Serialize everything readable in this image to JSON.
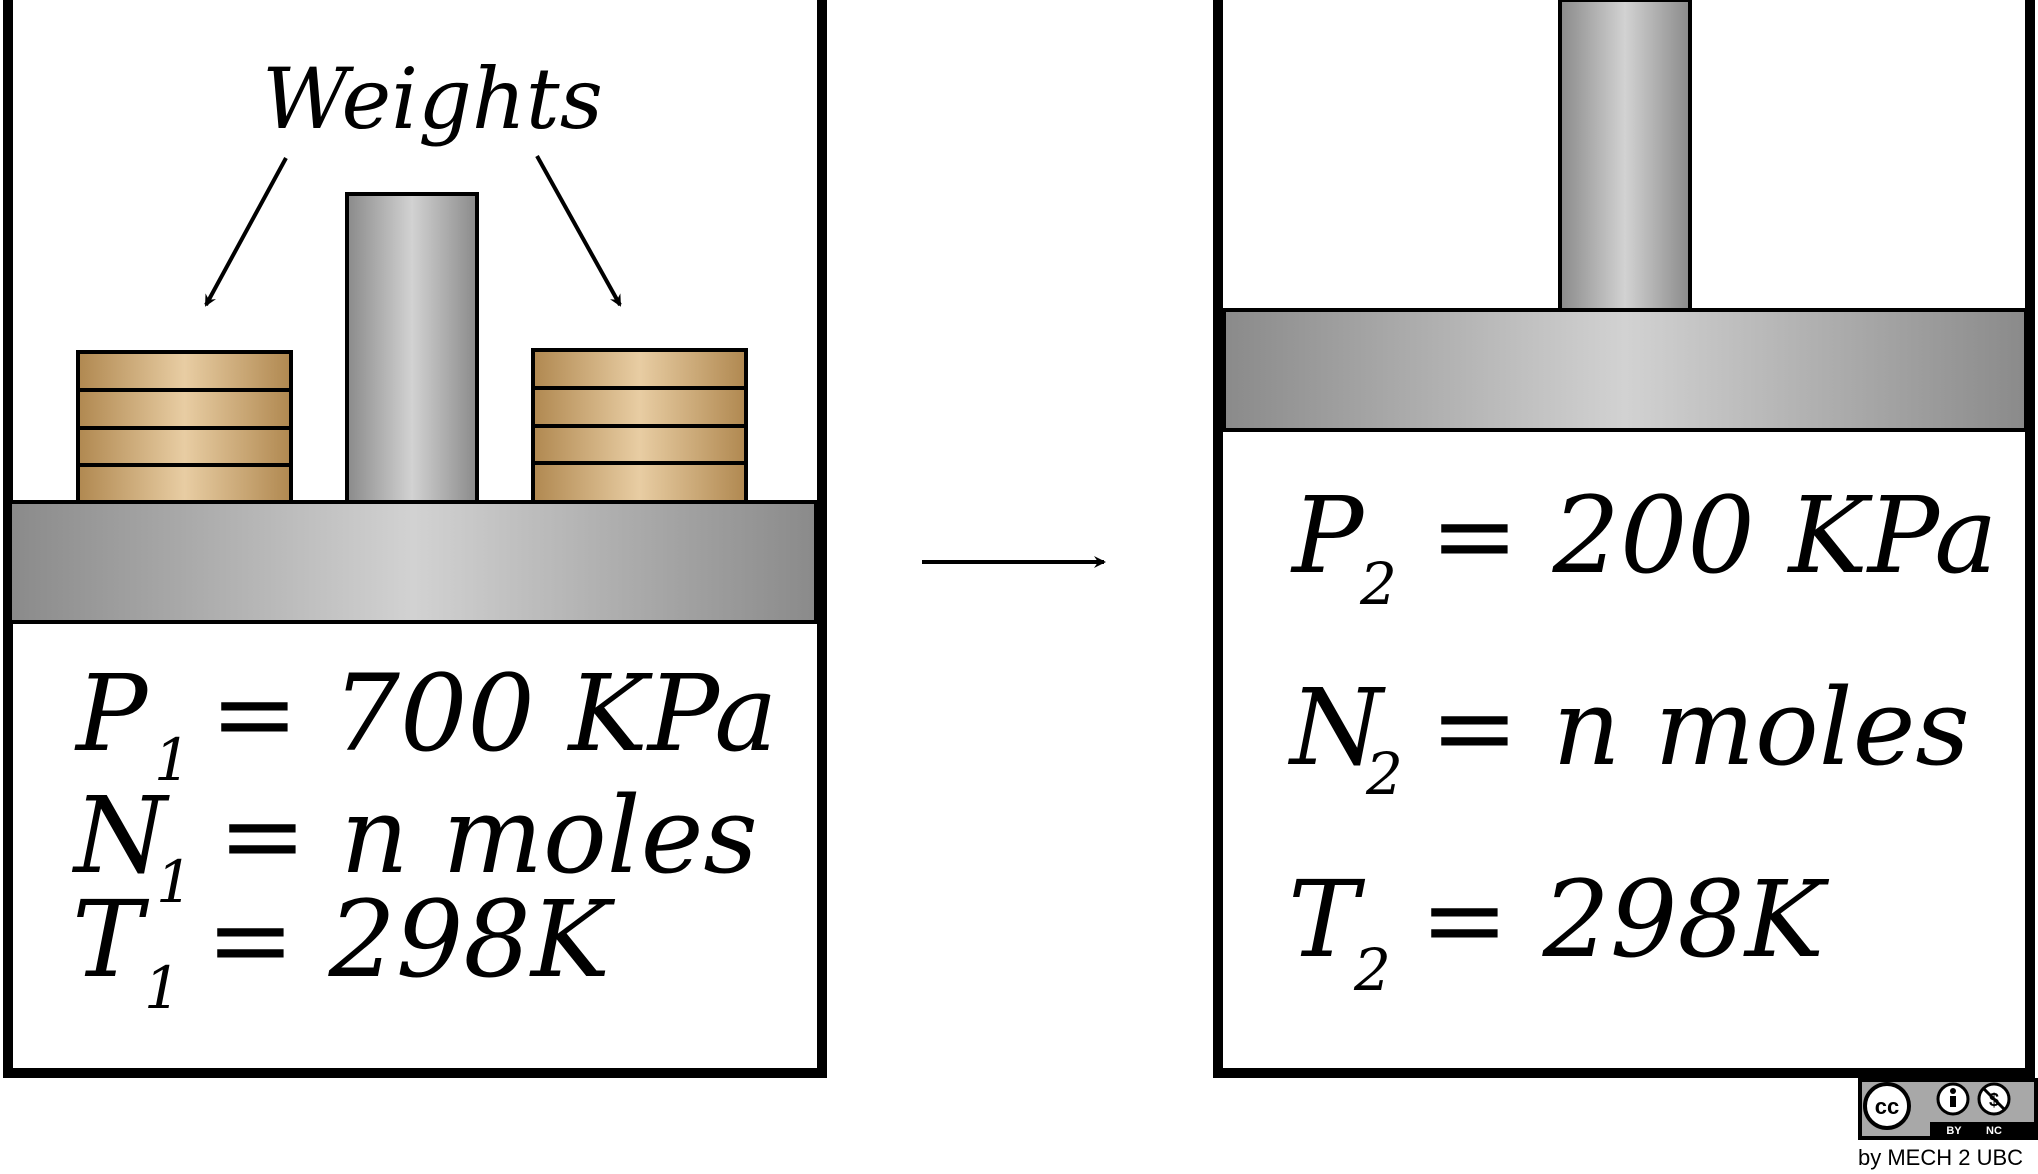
{
  "left_panel": {
    "weights_label": "Weights",
    "p": {
      "sym": "P",
      "sub": "1",
      "rest": "= 700 KPa"
    },
    "n": {
      "sym": "N",
      "sub": "1",
      "rest": "= n moles"
    },
    "t": {
      "sym": "T",
      "sub": "1",
      "rest": "= 298K"
    }
  },
  "right_panel": {
    "p": {
      "sym": "P",
      "sub": "2",
      "rest": "= 200 KPa"
    },
    "n": {
      "sym": "N",
      "sub": "2",
      "rest": "= n moles"
    },
    "t": {
      "sym": "T",
      "sub": "2",
      "rest": "= 298K"
    }
  },
  "license": {
    "cc": "cc",
    "by": "BY",
    "nc": "NC",
    "credit": "by MECH 2 UBC"
  },
  "colors": {
    "piston_dark": "#8a8a8a",
    "piston_light": "#cfcfcf",
    "weight_dark": "#b08850",
    "weight_light": "#e6c9a0",
    "outline": "#000000"
  }
}
